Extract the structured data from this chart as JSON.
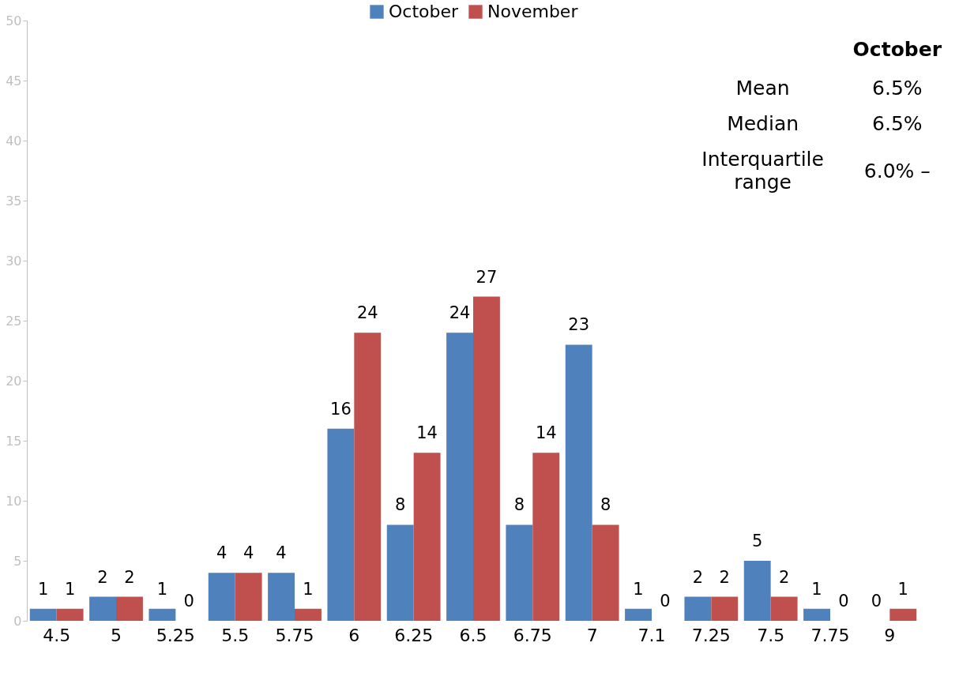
{
  "chart_data": {
    "type": "bar",
    "categories": [
      "4.5",
      "5",
      "5.25",
      "5.5",
      "5.75",
      "6",
      "6.25",
      "6.5",
      "6.75",
      "7",
      "7.1",
      "7.25",
      "7.5",
      "7.75",
      "9"
    ],
    "series": [
      {
        "name": "October",
        "color": "#4f81bd",
        "values": [
          1,
          2,
          1,
          4,
          4,
          16,
          8,
          24,
          8,
          23,
          1,
          2,
          5,
          1,
          0
        ]
      },
      {
        "name": "November",
        "color": "#c0504d",
        "values": [
          1,
          2,
          0,
          4,
          1,
          24,
          14,
          27,
          14,
          8,
          0,
          2,
          2,
          0,
          1
        ]
      }
    ],
    "ylim": [
      0,
      50
    ],
    "yticks": [
      0,
      5,
      10,
      15,
      20,
      25,
      30,
      35,
      40,
      45,
      50
    ],
    "grid": false,
    "legend": "top",
    "data_labels": true,
    "annotations": [
      "October",
      "Mean",
      "6.5%",
      "Median",
      "6.5%",
      "Interquartile range",
      "6.0% –"
    ]
  }
}
